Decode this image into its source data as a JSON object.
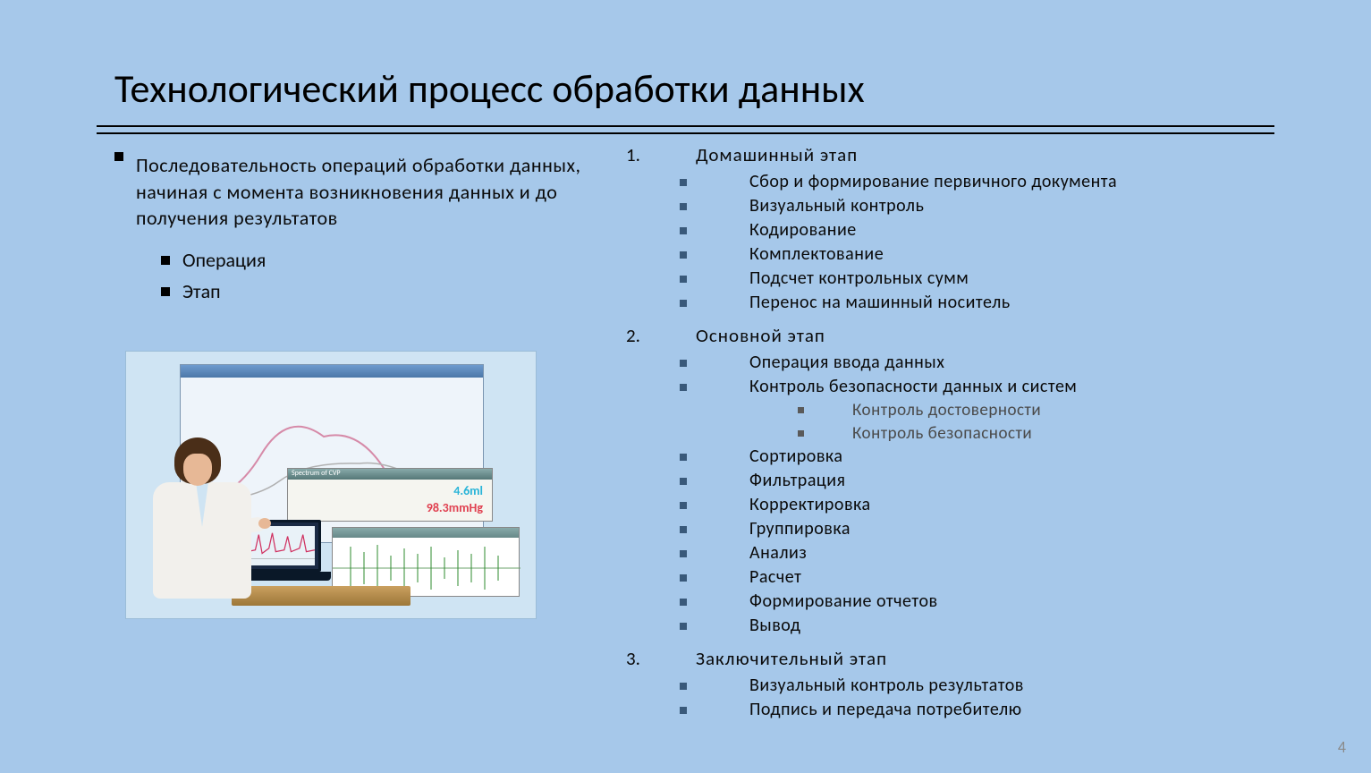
{
  "title": "Технологический процесс обработки данных",
  "page_number": "4",
  "colors": {
    "background": "#a6c8ea",
    "text": "#0a0a0a",
    "sub_bullet": "#39597a",
    "lvl3_text": "#4a4a4a",
    "page_num": "#8a8a8a",
    "rule": "#000000"
  },
  "left": {
    "main": "Последовательность  операций  обработки данных, начиная  с  момента  возникновения данных  и  до  получения  результатов",
    "sub": [
      "Операция",
      "Этап"
    ]
  },
  "right": {
    "stages": [
      {
        "num": "1.",
        "label": "Домашинный  этап",
        "items": [
          {
            "text": "Сбор  и  формирование  первичного  документа"
          },
          {
            "text": "Визуальный  контроль"
          },
          {
            "text": "Кодирование"
          },
          {
            "text": "Комплектование"
          },
          {
            "text": "Подсчет  контрольных  сумм"
          },
          {
            "text": "Перенос  на  машинный  носитель"
          }
        ]
      },
      {
        "num": "2.",
        "label": "Основной  этап",
        "items": [
          {
            "text": "Операция  ввода  данных"
          },
          {
            "text": "Контроль  безопасности  данных  и  систем",
            "sub": [
              "Контроль  достоверности",
              "Контроль  безопасности"
            ]
          },
          {
            "text": "Сортировка"
          },
          {
            "text": "Фильтрация"
          },
          {
            "text": "Корректировка"
          },
          {
            "text": "Группировка"
          },
          {
            "text": "Анализ"
          },
          {
            "text": "Расчет"
          },
          {
            "text": "Формирование  отчетов"
          },
          {
            "text": "Вывод"
          }
        ]
      },
      {
        "num": "3.",
        "label": "Заключительный  этап",
        "items": [
          {
            "text": "Визуальный  контроль  результатов"
          },
          {
            "text": "Подпись  и  передача  потребителю"
          }
        ]
      }
    ]
  },
  "illustration": {
    "mid_val1": "4.6ml",
    "mid_val2": "98.3mmHg",
    "spectrum_label": "Spectrum of CVP"
  }
}
